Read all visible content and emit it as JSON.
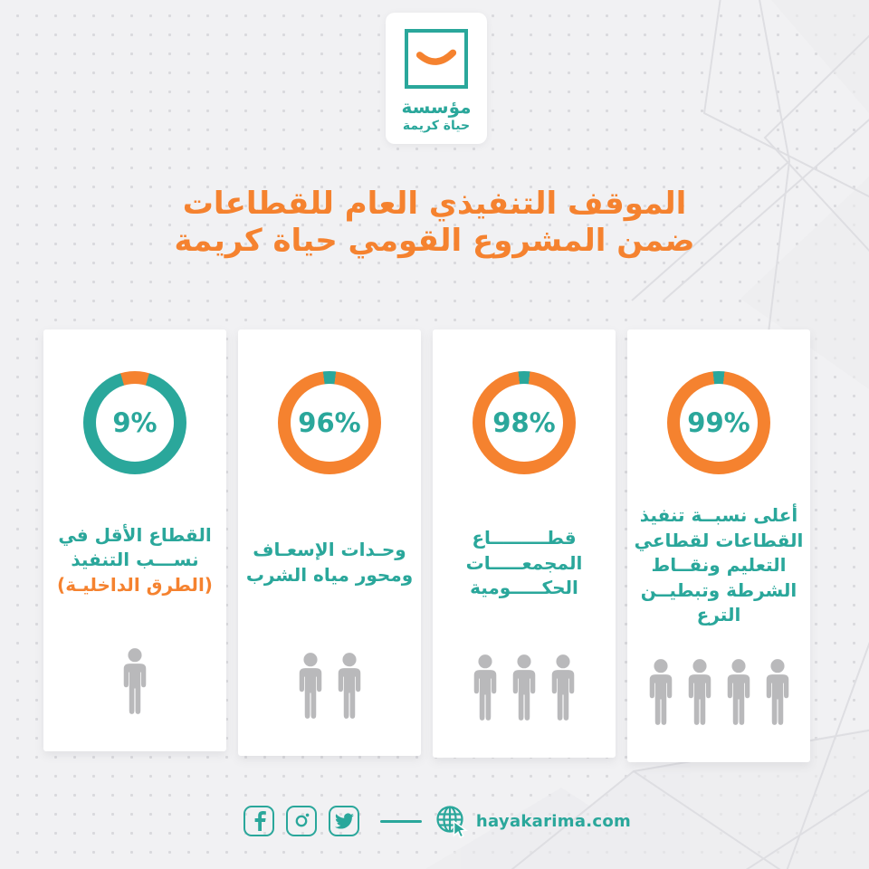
{
  "colors": {
    "teal": "#2aa79b",
    "orange": "#f5822f",
    "person_gray": "#b9b9bb",
    "background": "#f1f1f3",
    "card": "#ffffff"
  },
  "logo": {
    "name": "مؤسسة",
    "subname": "حياة كريمة",
    "icon": "smile-icon"
  },
  "title": {
    "line1": "الموقف التنفيذي العام للقطاعات",
    "line2": "ضمن المشروع القومي حياة كريمة"
  },
  "chart_data": {
    "type": "pie",
    "subtype": "donut-multiples",
    "title": "الموقف التنفيذي العام للقطاعات ضمن المشروع القومي حياة كريمة",
    "unit": "%",
    "value_color": "#f5822f",
    "remainder_color": "#2aa79b",
    "series": [
      {
        "name": "القطاع الأقل في نســـب التنفيذ (الطرق الداخليـة)",
        "value": 9,
        "persons": 1
      },
      {
        "name": "وحـدات الإسعـاف ومحور مياه الشرب",
        "value": 96,
        "persons": 2
      },
      {
        "name": "قطاع المجمعات الحكومية",
        "value": 98,
        "persons": 3
      },
      {
        "name": "أعلى نسبة تنفيذ القطاعات لقطاعي التعليم ونقاط الشرطة وتبطين الترع",
        "value": 99,
        "persons": 4
      }
    ]
  },
  "cards": [
    {
      "percent_label": "9%",
      "value": 9,
      "lines": [
        {
          "text": "القطاع الأقل في",
          "color": "teal"
        },
        {
          "text": "نســـب التنفيذ",
          "color": "teal"
        },
        {
          "text": "(الطرق الداخليـة)",
          "color": "orange"
        }
      ],
      "persons": 1
    },
    {
      "percent_label": "96%",
      "value": 96,
      "lines": [
        {
          "text": "وحـدات الإسعـاف",
          "color": "teal"
        },
        {
          "text": "ومحور مياه الشرب",
          "color": "teal"
        }
      ],
      "persons": 2
    },
    {
      "percent_label": "98%",
      "value": 98,
      "lines": [
        {
          "text": "قطـــــــــاع",
          "color": "teal"
        },
        {
          "text": "المجمعـــــات",
          "color": "teal"
        },
        {
          "text": "الحكـــــومية",
          "color": "teal"
        }
      ],
      "persons": 3
    },
    {
      "percent_label": "99%",
      "value": 99,
      "lines": [
        {
          "text": "أعلى نسبــة تنفيذ",
          "color": "teal"
        },
        {
          "text": "القطاعات لقطاعي",
          "color": "teal"
        },
        {
          "text": "التعليم ونقــاط",
          "color": "teal"
        },
        {
          "text": "الشرطة وتبطيــن",
          "color": "teal"
        },
        {
          "text": "الترع",
          "color": "teal"
        }
      ],
      "persons": 4
    }
  ],
  "footer": {
    "website": "hayakarima.com",
    "social": [
      "facebook-icon",
      "instagram-icon",
      "twitter-icon"
    ]
  }
}
